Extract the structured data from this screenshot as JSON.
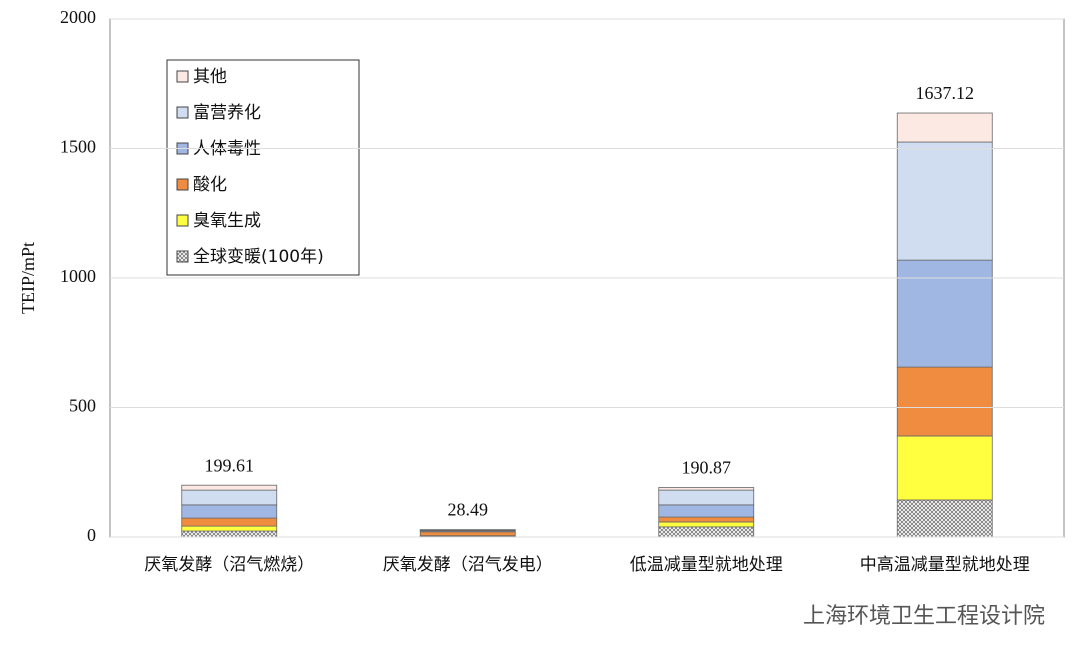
{
  "chart_data": {
    "type": "stacked_bar",
    "y_label": "TEIP/mPt",
    "categories": [
      "厌氧发酵（沼气燃烧）",
      "厌氧发酵（沼气发电）",
      "低温减量型就地处理",
      "中高温减量型就地处理"
    ],
    "series": [
      {
        "name": "全球变暖(100年)",
        "color": "#ffffff",
        "pattern": "crosshatch",
        "values": [
          23,
          3,
          39,
          143
        ]
      },
      {
        "name": "臭氧生成",
        "color": "#ffff40",
        "values": [
          19,
          2,
          19,
          247
        ]
      },
      {
        "name": "酸化",
        "color": "#ef8c3f",
        "values": [
          31,
          15,
          19,
          266
        ]
      },
      {
        "name": "人体毒性",
        "color": "#9fb7e2",
        "values": [
          51,
          4,
          47,
          413
        ]
      },
      {
        "name": "富营养化",
        "color": "#d0dcef",
        "values": [
          57,
          3,
          57,
          456
        ]
      },
      {
        "name": "其他",
        "color": "#fde9e4",
        "values": [
          19,
          1.5,
          10,
          112
        ]
      }
    ],
    "totals": [
      199.61,
      28.49,
      190.87,
      1637.12
    ],
    "ylim": [
      0,
      2000
    ],
    "yticks": [
      0,
      500,
      1000,
      1500,
      2000
    ],
    "grid": true,
    "legend": "top-left",
    "watermark": "上海环境卫生工程设计院"
  }
}
